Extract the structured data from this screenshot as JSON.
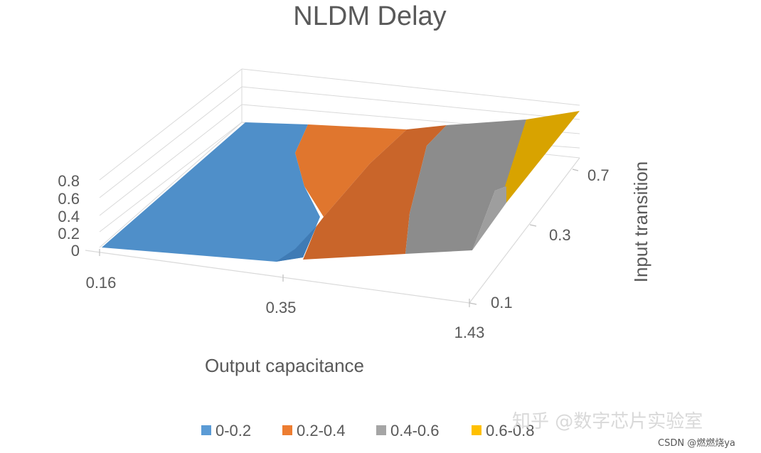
{
  "chart_data": {
    "type": "surface",
    "title": "NLDM Delay",
    "xlabel": "Output capacitance",
    "ylabel": "Input transition",
    "x_ticks": [
      "0.16",
      "0.35",
      "1.43"
    ],
    "y_ticks": [
      "0.1",
      "0.3",
      "0.7"
    ],
    "z_ticks": [
      "0",
      "0.2",
      "0.4",
      "0.6",
      "0.8"
    ],
    "z_range": [
      0,
      0.8
    ],
    "legend_position": "bottom",
    "series": [
      {
        "name": "0-0.2",
        "color": "#5B9BD5"
      },
      {
        "name": "0.2-0.4",
        "color": "#ED7D31"
      },
      {
        "name": "0.4-0.6",
        "color": "#A5A5A5"
      },
      {
        "name": "0.6-0.8",
        "color": "#FFC000"
      }
    ],
    "grid": true,
    "perspective": "3d"
  },
  "watermark": {
    "zhihu": "知乎 @数字芯片实验室",
    "csdn": "CSDN @燃燃烧ya"
  }
}
